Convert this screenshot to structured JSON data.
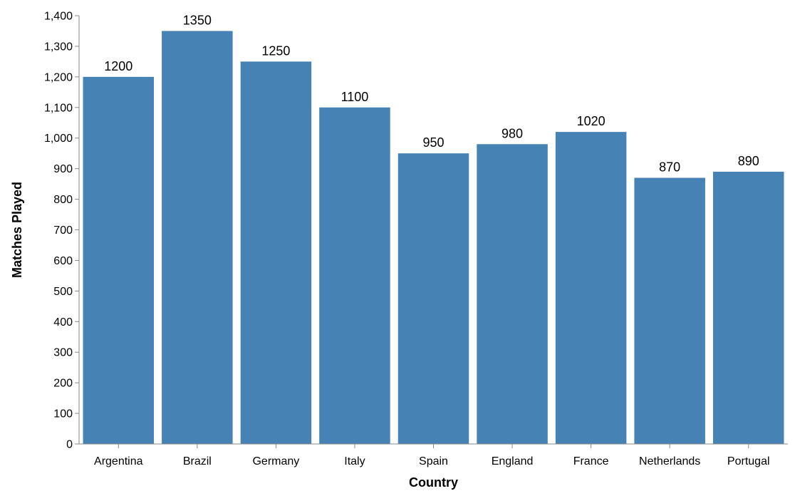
{
  "chart_data": {
    "type": "bar",
    "categories": [
      "Argentina",
      "Brazil",
      "Germany",
      "Italy",
      "Spain",
      "England",
      "France",
      "Netherlands",
      "Portugal"
    ],
    "values": [
      1200,
      1350,
      1250,
      1100,
      950,
      980,
      1020,
      870,
      890
    ],
    "xlabel": "Country",
    "ylabel": "Matches Played",
    "ylim": [
      0,
      1400
    ],
    "yticks": [
      0,
      100,
      200,
      300,
      400,
      500,
      600,
      700,
      800,
      900,
      1000,
      1100,
      1200,
      1300,
      1400
    ],
    "ytick_labels": [
      "0",
      "100",
      "200",
      "300",
      "400",
      "500",
      "600",
      "700",
      "800",
      "900",
      "1,000",
      "1,100",
      "1,200",
      "1,300",
      "1,400"
    ],
    "data_labels": [
      "1200",
      "1350",
      "1250",
      "1100",
      "950",
      "980",
      "1020",
      "870",
      "890"
    ],
    "grid": false,
    "bar_color": "#4682b4"
  }
}
